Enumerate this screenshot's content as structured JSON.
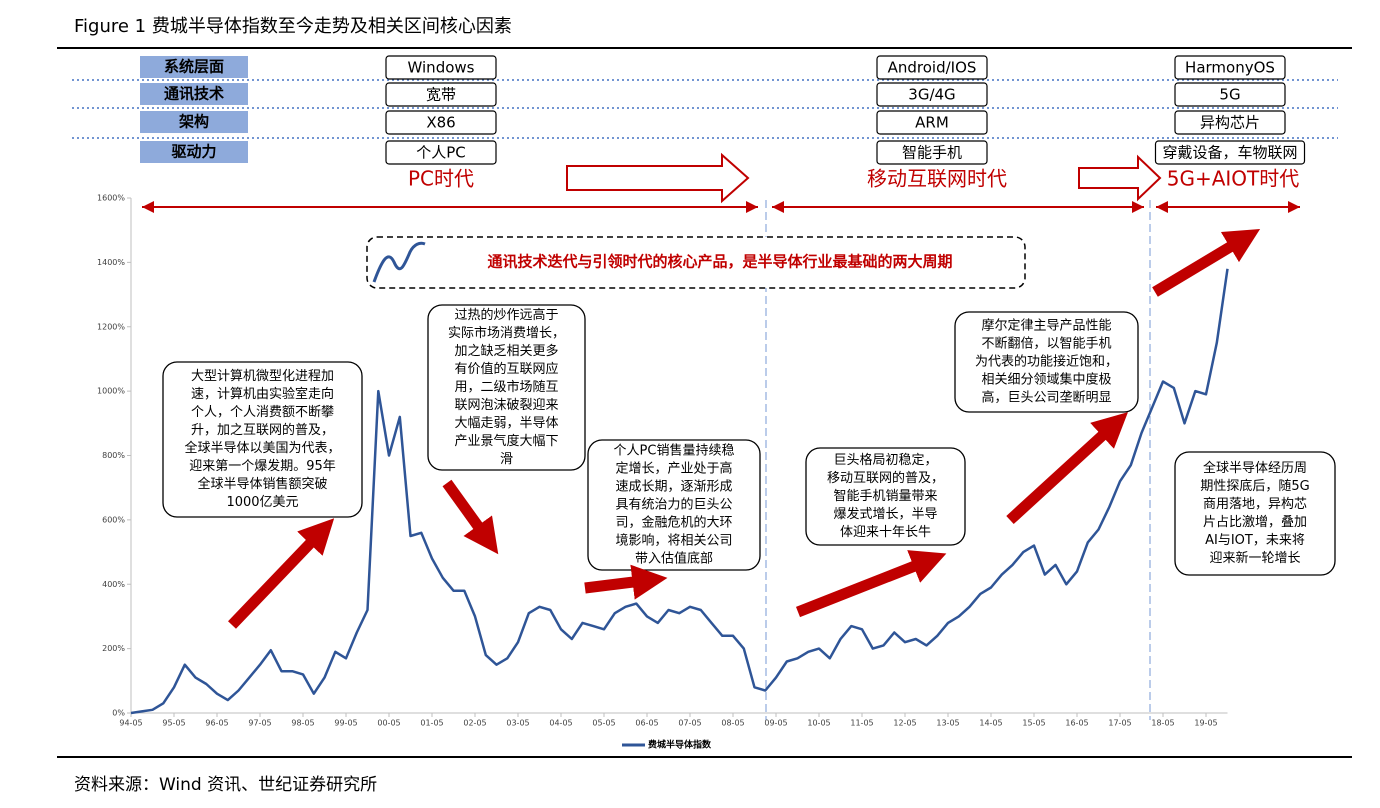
{
  "figure_title": "Figure 1  费城半导体指数至今走势及相关区间核心因素",
  "timeline": {
    "rows": [
      {
        "label": "系统层面",
        "values": [
          "Windows",
          "Android/IOS",
          "HarmonyOS"
        ]
      },
      {
        "label": "通讯技术",
        "values": [
          "宽带",
          "3G/4G",
          "5G"
        ]
      },
      {
        "label": "架构",
        "values": [
          "X86",
          "ARM",
          "异构芯片"
        ]
      },
      {
        "label": "驱动力",
        "values": [
          "个人PC",
          "智能手机",
          "穿戴设备，车物联网"
        ]
      }
    ],
    "eras": [
      "PC时代",
      "移动互联网时代",
      "5G+AIOT时代"
    ],
    "banner": "通讯技术迭代与引领时代的核心产品，是半导体行业最基础的两大周期"
  },
  "chart_data": {
    "type": "line",
    "x": [
      "94-05",
      "94-08",
      "94-11",
      "95-02",
      "95-05",
      "95-08",
      "95-11",
      "96-02",
      "96-05",
      "96-08",
      "96-11",
      "97-02",
      "97-05",
      "97-08",
      "97-11",
      "98-02",
      "98-05",
      "98-08",
      "98-11",
      "99-02",
      "99-05",
      "99-08",
      "99-11",
      "00-02",
      "00-05",
      "00-08",
      "00-11",
      "01-02",
      "01-05",
      "01-08",
      "01-11",
      "02-02",
      "02-05",
      "02-08",
      "02-11",
      "03-02",
      "03-05",
      "03-08",
      "03-11",
      "04-02",
      "04-05",
      "04-08",
      "04-11",
      "05-02",
      "05-05",
      "05-08",
      "05-11",
      "06-02",
      "06-05",
      "06-08",
      "06-11",
      "07-02",
      "07-05",
      "07-08",
      "07-11",
      "08-02",
      "08-05",
      "08-08",
      "08-11",
      "09-02",
      "09-05",
      "09-08",
      "09-11",
      "10-02",
      "10-05",
      "10-08",
      "10-11",
      "11-02",
      "11-05",
      "11-08",
      "11-11",
      "12-02",
      "12-05",
      "12-08",
      "12-11",
      "13-02",
      "13-05",
      "13-08",
      "13-11",
      "14-02",
      "14-05",
      "14-08",
      "14-11",
      "15-02",
      "15-05",
      "15-08",
      "15-11",
      "16-02",
      "16-05",
      "16-08",
      "16-11",
      "17-02",
      "17-05",
      "17-08",
      "17-11",
      "18-02",
      "18-05",
      "18-08",
      "18-11",
      "19-02",
      "19-05",
      "19-08",
      "19-11"
    ],
    "series": [
      {
        "name": "费城半导体指数",
        "color": "#2f5597",
        "values": [
          0,
          5,
          10,
          30,
          80,
          150,
          110,
          90,
          60,
          40,
          70,
          110,
          150,
          195,
          130,
          130,
          120,
          60,
          110,
          190,
          170,
          250,
          320,
          1000,
          800,
          920,
          550,
          560,
          480,
          420,
          380,
          380,
          300,
          180,
          150,
          170,
          220,
          310,
          330,
          320,
          260,
          230,
          280,
          270,
          260,
          310,
          330,
          340,
          300,
          280,
          320,
          310,
          330,
          320,
          280,
          240,
          240,
          200,
          80,
          70,
          110,
          160,
          170,
          190,
          200,
          170,
          230,
          270,
          260,
          200,
          210,
          250,
          220,
          230,
          210,
          240,
          280,
          300,
          330,
          370,
          390,
          430,
          460,
          500,
          520,
          430,
          460,
          400,
          440,
          530,
          570,
          640,
          720,
          770,
          870,
          950,
          1030,
          1010,
          900,
          1000,
          990,
          1150,
          1380
        ]
      }
    ],
    "ylim": [
      0,
      1600
    ],
    "yticks": [
      {
        "value": 0,
        "label": "0%"
      },
      {
        "value": 200,
        "label": "200%"
      },
      {
        "value": 400,
        "label": "400%"
      },
      {
        "value": 600,
        "label": "600%"
      },
      {
        "value": 800,
        "label": "800%"
      },
      {
        "value": 1000,
        "label": "1000%"
      },
      {
        "value": 1200,
        "label": "1200%"
      },
      {
        "value": 1400,
        "label": "1400%"
      },
      {
        "value": 1600,
        "label": "1600%"
      }
    ],
    "legend": "bottom",
    "annotations": [
      [
        "大型计算机微型化进程加",
        "速，计算机由实验室走向",
        "个人，个人消费额不断攀",
        "升，加之互联网的普及，",
        "全球半导体以美国为代表，",
        "迎来第一个爆发期。95年",
        "全球半导体销售额突破",
        "1000亿美元"
      ],
      [
        "过热的炒作远高于",
        "实际市场消费增长，",
        "加之缺乏相关更多",
        "有价值的互联网应",
        "用，二级市场随互",
        "联网泡沫破裂迎来",
        "大幅走弱，半导体",
        "产业景气度大幅下",
        "滑"
      ],
      [
        "个人PC销售量持续稳",
        "定增长，产业处于高",
        "速成长期，逐渐形成",
        "具有统治力的巨头公",
        "司，金融危机的大环",
        "境影响，将相关公司",
        "带入估值底部"
      ],
      [
        "巨头格局初稳定，",
        "移动互联网的普及，",
        "智能手机销量带来",
        "爆发式增长，半导",
        "体迎来十年长牛"
      ],
      [
        "摩尔定律主导产品性能",
        "不断翻倍，以智能手机",
        "为代表的功能接近饱和，",
        "相关细分领域集中度极",
        "高，巨头公司垄断明显"
      ],
      [
        "全球半导体经历周",
        "期性探底后，随5G",
        "商用落地，异构芯",
        "片占比激增，叠加",
        "AI与IOT，未来将",
        "迎来新一轮增长"
      ]
    ]
  },
  "source": "资料来源：Wind 资讯、世纪证券研究所"
}
